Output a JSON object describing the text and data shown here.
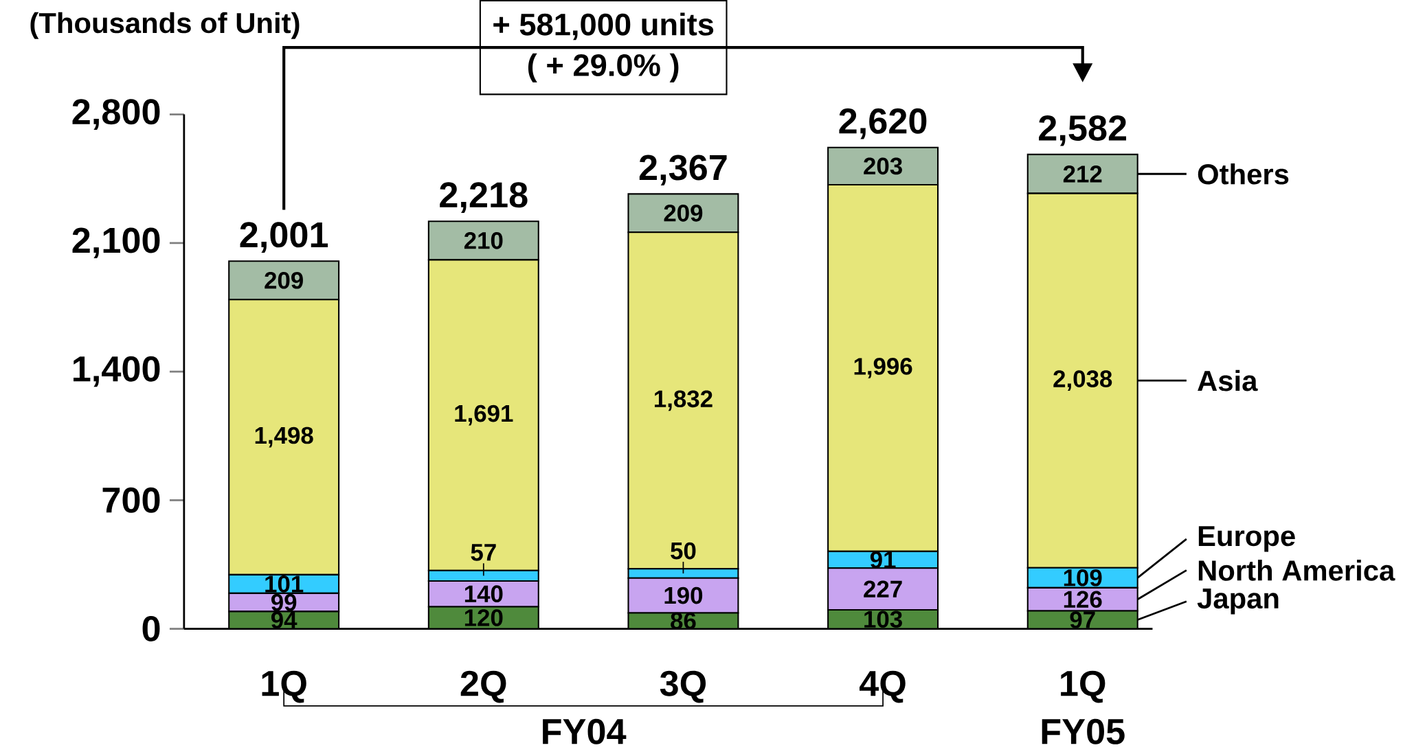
{
  "chart_data": {
    "type": "bar",
    "stacked": true,
    "ylabel": "(Thousands of Unit)",
    "categories": [
      "1Q",
      "2Q",
      "3Q",
      "4Q",
      "1Q"
    ],
    "ylim": [
      0,
      2800
    ],
    "yticks": [
      0,
      700,
      {
        "value": 1400,
        "label": "1,400"
      },
      {
        "value": 2100,
        "label": "2,100"
      },
      {
        "value": 2800,
        "label": "2,800"
      }
    ],
    "series": [
      {
        "name": "Japan",
        "color": "#4f8a3c",
        "values": [
          94,
          120,
          86,
          103,
          97
        ],
        "value_labels": [
          "94",
          "120",
          "86",
          "103",
          "97"
        ]
      },
      {
        "name": "North America",
        "color": "#c8a4f0",
        "values": [
          99,
          140,
          190,
          227,
          126
        ],
        "value_labels": [
          "99",
          "140",
          "190",
          "227",
          "126"
        ]
      },
      {
        "name": "Europe",
        "color": "#33ccff",
        "values": [
          101,
          57,
          50,
          91,
          109
        ],
        "value_labels": [
          "101",
          "57",
          "50",
          "91",
          "109"
        ]
      },
      {
        "name": "Asia",
        "color": "#e6e67a",
        "values": [
          1498,
          1691,
          1832,
          1996,
          2038
        ],
        "value_labels": [
          "1,498",
          "1,691",
          "1,832",
          "1,996",
          "2,038"
        ]
      },
      {
        "name": "Others",
        "color": "#a3bca5",
        "values": [
          209,
          210,
          209,
          203,
          212
        ],
        "value_labels": [
          "209",
          "210",
          "209",
          "203",
          "212"
        ]
      }
    ],
    "totals": [
      "2,001",
      "2,218",
      "2,367",
      "2,620",
      "2,582"
    ],
    "annotations": [
      "+ 581,000 units",
      "( + 29.0% )",
      "FY04",
      "FY05"
    ],
    "legend": "right"
  }
}
